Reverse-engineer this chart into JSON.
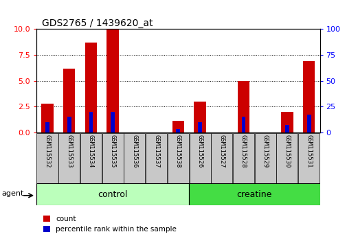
{
  "title": "GDS2765 / 1439620_at",
  "samples": [
    "GSM115532",
    "GSM115533",
    "GSM115534",
    "GSM115535",
    "GSM115536",
    "GSM115537",
    "GSM115538",
    "GSM115526",
    "GSM115527",
    "GSM115528",
    "GSM115529",
    "GSM115530",
    "GSM115531"
  ],
  "count_values": [
    2.8,
    6.2,
    8.7,
    10.0,
    0.0,
    0.0,
    1.1,
    3.0,
    0.0,
    5.0,
    0.0,
    2.0,
    6.9
  ],
  "percentile_values": [
    10,
    15,
    20,
    20,
    0,
    0,
    3,
    10,
    0,
    15,
    0,
    7,
    17
  ],
  "ylim_left": [
    0,
    10
  ],
  "ylim_right": [
    0,
    100
  ],
  "yticks_left": [
    0,
    2.5,
    5,
    7.5,
    10
  ],
  "yticks_right": [
    0,
    25,
    50,
    75,
    100
  ],
  "groups": [
    {
      "label": "control",
      "start": 0,
      "end": 7,
      "color": "#bbffbb"
    },
    {
      "label": "creatine",
      "start": 7,
      "end": 13,
      "color": "#44dd44"
    }
  ],
  "bar_color_red": "#cc0000",
  "bar_color_blue": "#0000cc",
  "grid_color": "#000000",
  "agent_label": "agent",
  "legend_count": "count",
  "legend_percentile": "percentile rank within the sample",
  "bg_color": "#ffffff",
  "tick_bg_color": "#c8c8c8",
  "title_fontsize": 10,
  "ytick_fontsize": 8,
  "xtick_fontsize": 6.5
}
